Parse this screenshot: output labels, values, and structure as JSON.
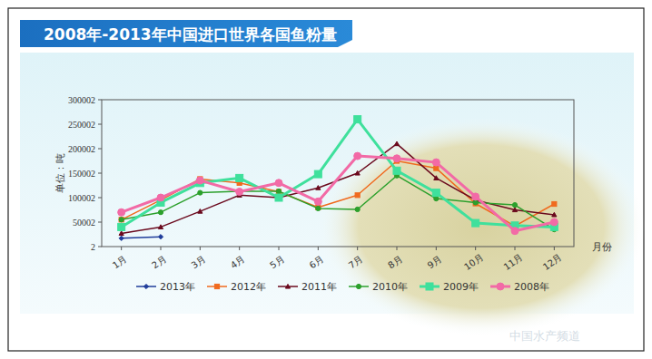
{
  "chart_data": {
    "type": "line",
    "title": "2008年-2013年中国进口世界各国鱼粉量",
    "y_label": "单位：吨",
    "x_label": "月份",
    "watermark": "中国水产频道",
    "categories": [
      "1月",
      "2月",
      "3月",
      "4月",
      "5月",
      "6月",
      "7月",
      "8月",
      "9月",
      "10月",
      "11月",
      "12月"
    ],
    "ylim": [
      2,
      300002
    ],
    "yticks": [
      2,
      50002,
      100002,
      150002,
      200002,
      250002,
      300002
    ],
    "grid": false,
    "legend": "bottom",
    "series": [
      {
        "name": "2013年",
        "color": "#1f3c9a",
        "marker": "diamond",
        "line_style": "solid",
        "values": [
          17000,
          20000,
          null,
          null,
          null,
          null,
          null,
          null,
          null,
          null,
          null,
          null
        ]
      },
      {
        "name": "2012年",
        "color": "#f06a1e",
        "marker": "square",
        "line_style": "solid",
        "values": [
          55000,
          95000,
          138000,
          130000,
          112000,
          80000,
          105000,
          175000,
          160000,
          88000,
          42000,
          87000
        ]
      },
      {
        "name": "2011年",
        "color": "#6b0a1e",
        "marker": "triangle",
        "line_style": "solid",
        "values": [
          27000,
          40000,
          72000,
          105000,
          100000,
          120000,
          150000,
          210000,
          140000,
          95000,
          75000,
          65000
        ]
      },
      {
        "name": "2010年",
        "color": "#2ca02c",
        "marker": "circle",
        "line_style": "solid",
        "values": [
          55000,
          70000,
          110000,
          113000,
          113000,
          78000,
          76000,
          145000,
          98000,
          90000,
          85000,
          35000
        ]
      },
      {
        "name": "2009年",
        "color": "#3fe09c",
        "marker": "square",
        "line_style": "thick",
        "values": [
          40000,
          90000,
          130000,
          140000,
          100000,
          148000,
          260000,
          155000,
          110000,
          48000,
          43000,
          40000
        ]
      },
      {
        "name": "2008年",
        "color": "#f26aa6",
        "marker": "circle",
        "line_style": "thick",
        "values": [
          70000,
          100000,
          135000,
          112000,
          130000,
          92000,
          185000,
          180000,
          172000,
          102000,
          32000,
          50000
        ]
      }
    ]
  }
}
